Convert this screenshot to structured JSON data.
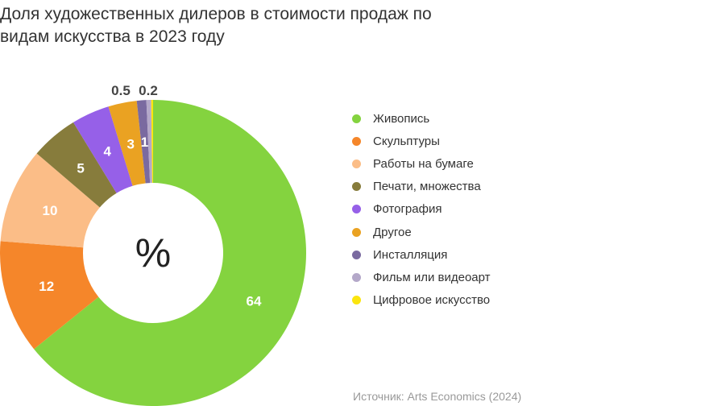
{
  "chart_data": {
    "type": "pie",
    "donut": true,
    "title": "Доля художественных дилеров в стоимости продаж по видам искусства в 2023 году",
    "center_label": "%",
    "categories": [
      "Живопись",
      "Скульптуры",
      "Работы на бумаге",
      "Печати, множества",
      "Фотография",
      "Другое",
      "Инсталляция",
      "Фильм или видеоарт",
      "Цифровое искусство"
    ],
    "values": [
      64,
      12,
      10,
      5,
      4,
      3,
      1,
      0.5,
      0.2
    ],
    "data_labels": [
      "64",
      "12",
      "10",
      "5",
      "4",
      "3",
      "1",
      "0.5",
      "0.2"
    ],
    "colors": [
      "#84d33f",
      "#f5862a",
      "#fbbd87",
      "#877c3c",
      "#9660e8",
      "#eaa222",
      "#7a6aa0",
      "#b4a8c9",
      "#fbe50e"
    ],
    "legend_position": "right"
  },
  "source": "Источник: Arts Economics (2024)"
}
